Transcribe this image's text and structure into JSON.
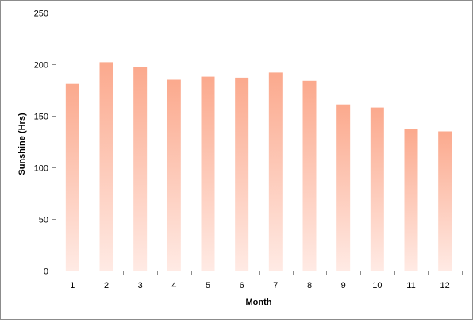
{
  "chart_data": {
    "type": "bar",
    "title": "",
    "xlabel": "Month",
    "ylabel": "Sunshine (Hrs)",
    "categories": [
      "1",
      "2",
      "3",
      "4",
      "5",
      "6",
      "7",
      "8",
      "9",
      "10",
      "11",
      "12"
    ],
    "values": [
      181,
      202,
      197,
      185,
      188,
      187,
      192,
      184,
      161,
      158,
      137,
      135
    ],
    "ylim": [
      0,
      250
    ],
    "yticks": [
      0,
      50,
      100,
      150,
      200,
      250
    ],
    "grid": false,
    "legend": "none",
    "colors": {
      "bar_top": "#fba98d",
      "bar_bottom": "#ffeae4",
      "axis": "#8c8c8c"
    }
  }
}
